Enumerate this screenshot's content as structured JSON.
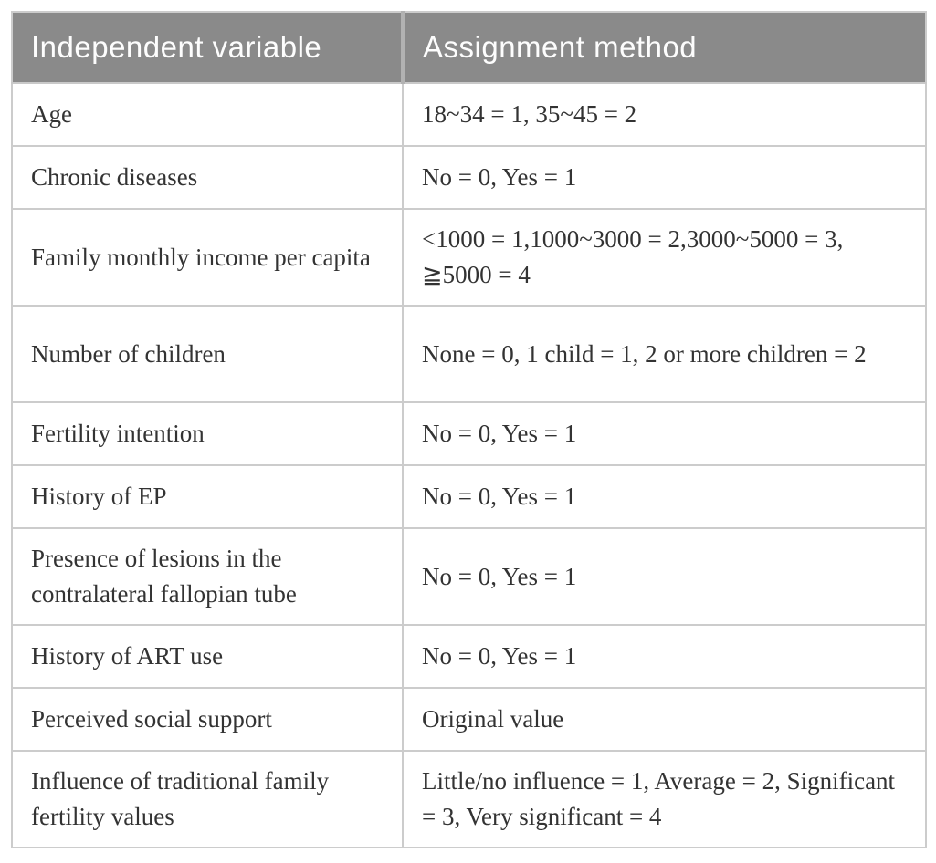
{
  "table": {
    "header": {
      "col1": "Independent variable",
      "col2": "Assignment method"
    },
    "rows": [
      {
        "variable": "Age",
        "method": "18~34 = 1, 35~45 = 2"
      },
      {
        "variable": "Chronic diseases",
        "method": "No = 0, Yes = 1"
      },
      {
        "variable": "Family monthly income per capita",
        "method": "<1000 = 1,1000~3000 = 2,3000~5000 = 3, ≧5000 = 4"
      },
      {
        "variable": "Number of children",
        "method": "None = 0, 1 child = 1, 2 or more children = 2"
      },
      {
        "variable": "Fertility intention",
        "method": "No = 0, Yes = 1"
      },
      {
        "variable": "History of EP",
        "method": "No = 0, Yes = 1"
      },
      {
        "variable": "Presence of lesions in the contralateral fallopian tube",
        "method": "No = 0, Yes = 1"
      },
      {
        "variable": "History of ART use",
        "method": "No = 0, Yes = 1"
      },
      {
        "variable": "Perceived social support",
        "method": "Original value"
      },
      {
        "variable": "Influence of traditional family fertility values",
        "method": "Little/no influence = 1, Average = 2, Significant = 3, Very significant = 4"
      }
    ],
    "colors": {
      "header_background": "#8a8a8a",
      "header_text": "#fdfdfd",
      "header_divider": "#b2b2b2",
      "grid_border": "#cccccc",
      "body_text": "#333333"
    }
  }
}
